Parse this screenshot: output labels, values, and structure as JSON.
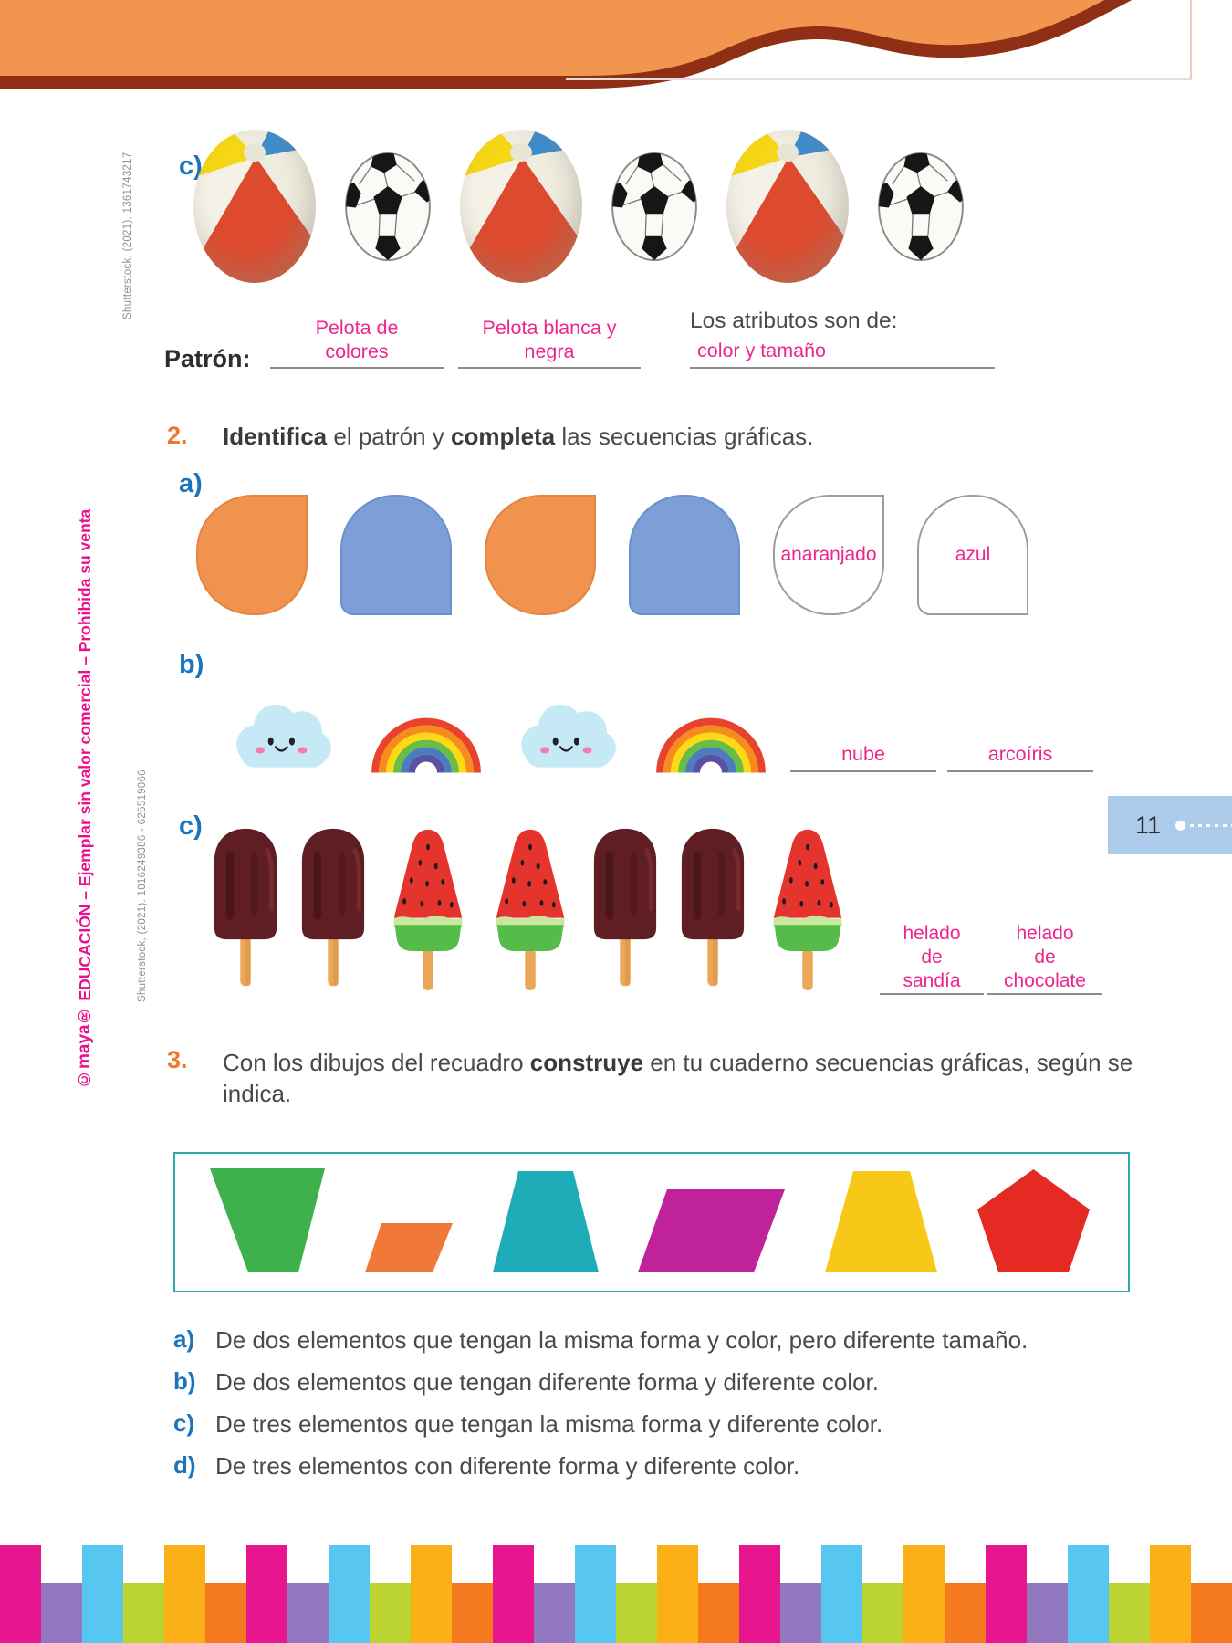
{
  "page": {
    "number": "11"
  },
  "credits": {
    "balls": "Shutterstock, (2021). 1361743217",
    "popsicles": "Shutterstock, (2021). 1016249386 - 626519066",
    "publisher_brand": "©maya®",
    "publisher_text": " EDUCACIÓN – Ejemplar sin valor comercial – Prohibida su venta"
  },
  "exercise1c": {
    "label": "c)",
    "sequence": [
      "beach-ball",
      "soccer-ball",
      "beach-ball",
      "soccer-ball",
      "beach-ball",
      "soccer-ball"
    ],
    "patron_label": "Patrón:",
    "answer1": "Pelota de colores",
    "answer2": "Pelota blanca y negra",
    "attributes_label": "Los atributos son de:",
    "attributes_answer": "color y tamaño"
  },
  "exercise2": {
    "number": "2.",
    "instruction_bold1": "Identifica",
    "instruction_mid": " el patrón y ",
    "instruction_bold2": "completa",
    "instruction_end": " las secuencias gráficas.",
    "row_a": {
      "label": "a)",
      "sequence": [
        "orange-shape",
        "blue-shape",
        "orange-shape",
        "blue-shape"
      ],
      "blank1": "anaranjado",
      "blank2": "azul"
    },
    "row_b": {
      "label": "b)",
      "sequence": [
        "cloud",
        "rainbow",
        "cloud",
        "rainbow"
      ],
      "blank1": "nube",
      "blank2": "arcoíris"
    },
    "row_c": {
      "label": "c)",
      "sequence": [
        "chocolate",
        "chocolate",
        "watermelon",
        "watermelon",
        "chocolate",
        "chocolate",
        "watermelon"
      ],
      "blank1": "helado de sandía",
      "blank2": "helado de chocolate"
    }
  },
  "exercise3": {
    "number": "3.",
    "instruction_start": "Con los dibujos del recuadro ",
    "instruction_bold": "construye",
    "instruction_end": " en tu cuaderno secuencias gráficas, según se indica.",
    "shapes": [
      {
        "name": "green-inverted-trapezoid",
        "color": "#3FB14C"
      },
      {
        "name": "orange-parallelogram",
        "color": "#F0793A"
      },
      {
        "name": "teal-trapezoid",
        "color": "#1EADB8"
      },
      {
        "name": "magenta-parallelogram",
        "color": "#C0229C"
      },
      {
        "name": "yellow-trapezoid",
        "color": "#F7C817"
      },
      {
        "name": "red-pentagon",
        "color": "#E52A24"
      }
    ],
    "options": [
      {
        "label": "a)",
        "text": "De dos elementos que tengan la misma forma y color, pero diferente tamaño."
      },
      {
        "label": "b)",
        "text": "De dos elementos que tengan diferente forma y diferente color."
      },
      {
        "label": "c)",
        "text": "De tres elementos que tengan la misma forma y diferente color."
      },
      {
        "label": "d)",
        "text": "De tres elementos con diferente forma y diferente color."
      }
    ]
  },
  "footer": {
    "count": 30,
    "tall_colors": [
      "#E7168F",
      "#57C7F2",
      "#FCB017"
    ],
    "short_colors": [
      "#9278BE",
      "#BCD431",
      "#F5791F"
    ]
  },
  "theme": {
    "header_orange": "#F2964F",
    "header_maroon": "#8E2F16",
    "accent_pink": "#EC268D",
    "accent_blue": "#1B75BC",
    "accent_orange": "#F0782C",
    "box_border_teal": "#2FA8AD",
    "tab_blue": "#ADCBEB"
  }
}
